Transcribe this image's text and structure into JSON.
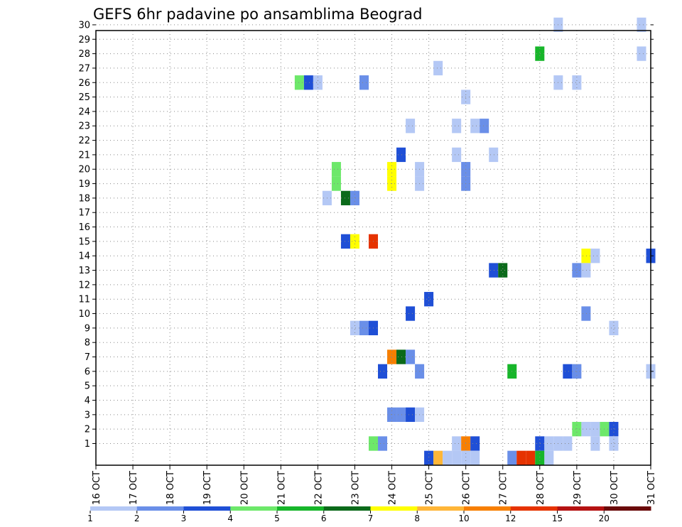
{
  "chart_data": {
    "type": "heatmap",
    "title": "GEFS 6hr padavine po ansamblima Beograd",
    "xlabel": "",
    "ylabel": "",
    "x_ticks": [
      "16 OCT",
      "17 OCT",
      "18 OCT",
      "19 OCT",
      "20 OCT",
      "21 OCT",
      "22 OCT",
      "23 OCT",
      "24 OCT",
      "25 OCT",
      "26 OCT",
      "27 OCT",
      "28 OCT",
      "29 OCT",
      "30 OCT",
      "31 OCT"
    ],
    "x_range": [
      "16 OCT",
      "31 OCT"
    ],
    "y_ticks": [
      1,
      2,
      3,
      4,
      5,
      6,
      7,
      8,
      9,
      10,
      11,
      12,
      13,
      14,
      15,
      16,
      17,
      18,
      19,
      20,
      21,
      22,
      23,
      24,
      25,
      26,
      27,
      28,
      29,
      30
    ],
    "grid": "dotted",
    "colorbar": {
      "labels": [
        "1",
        "2",
        "3",
        "4",
        "5",
        "6",
        "7",
        "8",
        "10",
        "12",
        "15",
        "20"
      ],
      "colors": [
        "#b4c8f5",
        "#6a8fe8",
        "#1f4fd6",
        "#6de86a",
        "#17b62a",
        "#0b6a1a",
        "#ffff00",
        "#ffb638",
        "#f77f00",
        "#e63300",
        "#b51212",
        "#6a0a0a"
      ]
    },
    "cells": [
      {
        "m": 30,
        "d": 28.5,
        "c": 1
      },
      {
        "m": 30,
        "d": 30.75,
        "c": 1
      },
      {
        "m": 28,
        "d": 28.0,
        "c": 5
      },
      {
        "m": 28,
        "d": 30.75,
        "c": 1
      },
      {
        "m": 27,
        "d": 25.25,
        "c": 1
      },
      {
        "m": 26,
        "d": 21.5,
        "c": 4
      },
      {
        "m": 26,
        "d": 21.75,
        "c": 3
      },
      {
        "m": 26,
        "d": 22.0,
        "c": 1
      },
      {
        "m": 26,
        "d": 23.25,
        "c": 2
      },
      {
        "m": 26,
        "d": 28.5,
        "c": 1
      },
      {
        "m": 26,
        "d": 29.0,
        "c": 1
      },
      {
        "m": 25,
        "d": 26.0,
        "c": 1
      },
      {
        "m": 23,
        "d": 24.5,
        "c": 1
      },
      {
        "m": 23,
        "d": 25.75,
        "c": 1
      },
      {
        "m": 23,
        "d": 26.25,
        "c": 1
      },
      {
        "m": 23,
        "d": 26.5,
        "c": 2
      },
      {
        "m": 21,
        "d": 24.25,
        "c": 3
      },
      {
        "m": 21,
        "d": 25.75,
        "c": 1
      },
      {
        "m": 21,
        "d": 26.75,
        "c": 1
      },
      {
        "m": 20,
        "d": 22.5,
        "c": 4
      },
      {
        "m": 20,
        "d": 24.0,
        "c": 7
      },
      {
        "m": 20,
        "d": 24.75,
        "c": 1
      },
      {
        "m": 20,
        "d": 26.0,
        "c": 2
      },
      {
        "m": 19,
        "d": 22.5,
        "c": 4
      },
      {
        "m": 19,
        "d": 24.0,
        "c": 7
      },
      {
        "m": 19,
        "d": 24.75,
        "c": 1
      },
      {
        "m": 19,
        "d": 26.0,
        "c": 2
      },
      {
        "m": 18,
        "d": 22.25,
        "c": 1
      },
      {
        "m": 18,
        "d": 22.75,
        "c": 6
      },
      {
        "m": 18,
        "d": 23.0,
        "c": 2
      },
      {
        "m": 15,
        "d": 22.75,
        "c": 3
      },
      {
        "m": 15,
        "d": 23.0,
        "c": 7
      },
      {
        "m": 15,
        "d": 23.5,
        "c": 10
      },
      {
        "m": 14,
        "d": 29.25,
        "c": 7
      },
      {
        "m": 14,
        "d": 29.5,
        "c": 1
      },
      {
        "m": 14,
        "d": 31.0,
        "c": 3
      },
      {
        "m": 13,
        "d": 26.75,
        "c": 3
      },
      {
        "m": 13,
        "d": 27.0,
        "c": 6
      },
      {
        "m": 13,
        "d": 29.0,
        "c": 2
      },
      {
        "m": 13,
        "d": 29.25,
        "c": 1
      },
      {
        "m": 11,
        "d": 25.0,
        "c": 3
      },
      {
        "m": 10,
        "d": 24.5,
        "c": 3
      },
      {
        "m": 10,
        "d": 29.25,
        "c": 2
      },
      {
        "m": 9,
        "d": 23.0,
        "c": 1
      },
      {
        "m": 9,
        "d": 23.25,
        "c": 2
      },
      {
        "m": 9,
        "d": 23.5,
        "c": 3
      },
      {
        "m": 9,
        "d": 30.0,
        "c": 1
      },
      {
        "m": 7,
        "d": 24.0,
        "c": 9
      },
      {
        "m": 7,
        "d": 24.25,
        "c": 6
      },
      {
        "m": 7,
        "d": 24.5,
        "c": 2
      },
      {
        "m": 6,
        "d": 23.75,
        "c": 3
      },
      {
        "m": 6,
        "d": 24.75,
        "c": 2
      },
      {
        "m": 6,
        "d": 27.25,
        "c": 5
      },
      {
        "m": 6,
        "d": 28.75,
        "c": 3
      },
      {
        "m": 6,
        "d": 29.0,
        "c": 2
      },
      {
        "m": 6,
        "d": 31.0,
        "c": 1
      },
      {
        "m": 3,
        "d": 24.0,
        "c": 2
      },
      {
        "m": 3,
        "d": 24.25,
        "c": 2
      },
      {
        "m": 3,
        "d": 24.5,
        "c": 3
      },
      {
        "m": 3,
        "d": 24.75,
        "c": 1
      },
      {
        "m": 2,
        "d": 29.0,
        "c": 4
      },
      {
        "m": 2,
        "d": 29.25,
        "c": 1
      },
      {
        "m": 2,
        "d": 29.5,
        "c": 1
      },
      {
        "m": 2,
        "d": 29.75,
        "c": 4
      },
      {
        "m": 2,
        "d": 30.0,
        "c": 3
      },
      {
        "m": 1,
        "d": 23.5,
        "c": 4
      },
      {
        "m": 1,
        "d": 23.75,
        "c": 2
      },
      {
        "m": 1,
        "d": 25.75,
        "c": 1
      },
      {
        "m": 1,
        "d": 26.0,
        "c": 9
      },
      {
        "m": 1,
        "d": 26.25,
        "c": 3
      },
      {
        "m": 1,
        "d": 28.0,
        "c": 3
      },
      {
        "m": 1,
        "d": 28.25,
        "c": 1
      },
      {
        "m": 1,
        "d": 28.5,
        "c": 1
      },
      {
        "m": 1,
        "d": 28.75,
        "c": 1
      },
      {
        "m": 1,
        "d": 29.5,
        "c": 1
      },
      {
        "m": 1,
        "d": 30.0,
        "c": 1
      },
      {
        "m": 0,
        "d": 25.0,
        "c": 3
      },
      {
        "m": 0,
        "d": 25.25,
        "c": 8
      },
      {
        "m": 0,
        "d": 25.5,
        "c": 1
      },
      {
        "m": 0,
        "d": 25.75,
        "c": 1
      },
      {
        "m": 0,
        "d": 26.0,
        "c": 1
      },
      {
        "m": 0,
        "d": 26.25,
        "c": 1
      },
      {
        "m": 0,
        "d": 27.25,
        "c": 2
      },
      {
        "m": 0,
        "d": 27.5,
        "c": 10
      },
      {
        "m": 0,
        "d": 27.75,
        "c": 10
      },
      {
        "m": 0,
        "d": 28.0,
        "c": 5
      },
      {
        "m": 0,
        "d": 28.25,
        "c": 1
      }
    ]
  }
}
